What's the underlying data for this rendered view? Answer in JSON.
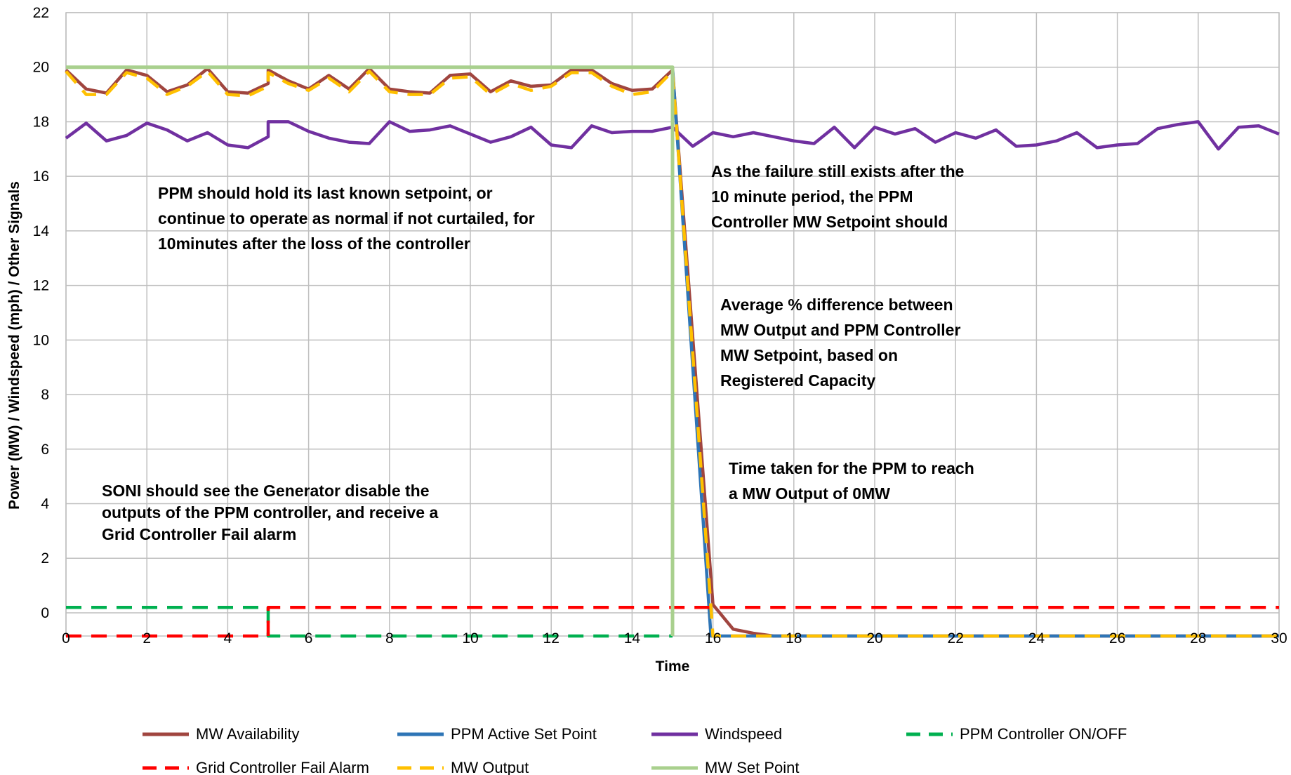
{
  "chart_data": {
    "type": "line",
    "title": "",
    "xlabel": "Time",
    "ylabel": "Power (MW) / Windspeed (mph) / Other Signals",
    "xlim": [
      0,
      30
    ],
    "x_ticks": [
      "0",
      "2",
      "4",
      "6",
      "8",
      "10",
      "12",
      "14",
      "16",
      "18",
      "20",
      "22",
      "24",
      "26",
      "28",
      "30"
    ],
    "y_ticks": [
      "0",
      "2",
      "4",
      "6",
      "8",
      "10",
      "12",
      "14",
      "16",
      "18",
      "20",
      "22"
    ],
    "y_tick_values": [
      0,
      2,
      4,
      6,
      8,
      10,
      12,
      14,
      16,
      18,
      20,
      22
    ],
    "ylim_display": [
      -0.85,
      22
    ],
    "grid": true,
    "legend_position": "bottom",
    "series": [
      {
        "name": "MW Availability",
        "color": "#A0453F",
        "dash": "solid",
        "x": [
          0,
          0.5,
          1,
          1.5,
          2,
          2.5,
          3,
          3.5,
          4,
          4.5,
          5,
          5,
          5.5,
          6,
          6.5,
          7,
          7.5,
          8,
          8.5,
          9,
          9.5,
          10,
          10.5,
          11,
          11.5,
          12,
          12.5,
          13,
          13.5,
          14,
          14.5,
          15,
          16,
          16.5,
          17,
          17.5,
          18,
          20,
          22,
          24,
          26,
          28,
          30
        ],
        "y": [
          19.9,
          19.2,
          19.05,
          19.9,
          19.7,
          19.1,
          19.35,
          19.95,
          19.1,
          19.05,
          19.4,
          19.9,
          19.5,
          19.2,
          19.7,
          19.2,
          19.95,
          19.2,
          19.1,
          19.05,
          19.7,
          19.75,
          19.1,
          19.5,
          19.3,
          19.35,
          19.9,
          19.9,
          19.4,
          19.15,
          19.2,
          19.9,
          0.3,
          -0.6,
          -0.75,
          -0.85,
          -0.85,
          -0.85,
          -0.85,
          -0.85,
          -0.85,
          -0.85,
          -0.85
        ]
      },
      {
        "name": "PPM Active Set Point",
        "color": "#2E75B6",
        "dash": "solid",
        "x": [
          15,
          15.95,
          16,
          18,
          20,
          22,
          24,
          26,
          28,
          30
        ],
        "y": [
          20,
          -0.85,
          -0.85,
          -0.85,
          -0.85,
          -0.85,
          -0.85,
          -0.85,
          -0.85,
          -0.85
        ]
      },
      {
        "name": "Windspeed",
        "color": "#7030A0",
        "dash": "solid",
        "x": [
          0,
          0.5,
          1,
          1.5,
          2,
          2.5,
          3,
          3.5,
          4,
          4.5,
          5,
          5,
          5.5,
          6,
          6.5,
          7,
          7.5,
          8,
          8.5,
          9,
          9.5,
          10,
          10.5,
          11,
          11.5,
          12,
          12.5,
          13,
          13.5,
          14,
          14.5,
          15,
          15.5,
          16,
          16.5,
          17,
          17.5,
          18,
          18.5,
          19,
          19.5,
          20,
          20.5,
          21,
          21.5,
          22,
          22.5,
          23,
          23.5,
          24,
          24.5,
          25,
          25.5,
          26,
          26.5,
          27,
          27.5,
          28,
          28.5,
          29,
          29.5,
          30
        ],
        "y": [
          17.4,
          17.95,
          17.3,
          17.5,
          17.95,
          17.7,
          17.3,
          17.6,
          17.15,
          17.05,
          17.45,
          18.0,
          18.0,
          17.65,
          17.4,
          17.25,
          17.2,
          18.0,
          17.65,
          17.7,
          17.85,
          17.55,
          17.25,
          17.45,
          17.8,
          17.15,
          17.05,
          17.85,
          17.6,
          17.65,
          17.65,
          17.8,
          17.1,
          17.6,
          17.45,
          17.6,
          17.45,
          17.3,
          17.2,
          17.8,
          17.05,
          17.8,
          17.55,
          17.75,
          17.25,
          17.6,
          17.4,
          17.7,
          17.1,
          17.15,
          17.3,
          17.6,
          17.05,
          17.15,
          17.2,
          17.75,
          17.9,
          18.0,
          17.0,
          17.8,
          17.85,
          17.55
        ]
      },
      {
        "name": "PPM Controller ON/OFF",
        "color": "#00B050",
        "dash": "dashed",
        "x": [
          0,
          5,
          5,
          15
        ],
        "y": [
          0.2,
          0.2,
          -0.85,
          -0.85
        ]
      },
      {
        "name": "Grid Controller Fail Alarm",
        "color": "#FF0000",
        "dash": "dashed",
        "x": [
          0,
          5,
          5,
          30
        ],
        "y": [
          -0.85,
          -0.85,
          0.2,
          0.2
        ]
      },
      {
        "name": "MW Output",
        "color": "#FFC000",
        "dash": "dashed",
        "x": [
          0,
          0.5,
          1,
          1.5,
          2,
          2.5,
          3,
          3.5,
          4,
          4.5,
          5,
          5,
          5.5,
          6,
          6.5,
          7,
          7.5,
          8,
          8.5,
          9,
          9.5,
          10,
          10.5,
          11,
          11.5,
          12,
          12.5,
          13,
          13.5,
          14,
          14.5,
          15,
          16,
          18,
          20,
          22,
          24,
          26,
          28,
          30
        ],
        "y": [
          19.85,
          19.0,
          19.0,
          19.8,
          19.6,
          19.0,
          19.3,
          19.85,
          19.0,
          18.95,
          19.3,
          19.8,
          19.4,
          19.15,
          19.6,
          19.1,
          19.85,
          19.1,
          19.0,
          19.0,
          19.6,
          19.65,
          19.0,
          19.4,
          19.15,
          19.3,
          19.8,
          19.8,
          19.3,
          19.0,
          19.1,
          19.85,
          -0.85,
          -0.85,
          -0.85,
          -0.85,
          -0.85,
          -0.85,
          -0.85,
          -0.85
        ]
      },
      {
        "name": "MW Set Point",
        "color": "#A9D08E",
        "dash": "solid",
        "x": [
          0,
          15,
          15
        ],
        "y": [
          20,
          20,
          -0.85
        ]
      }
    ],
    "annotations": [
      [
        "PPM should hold its last known setpoint, or",
        "continue to operate as normal if not curtailed, for",
        "10minutes after the loss of the controller"
      ],
      [
        "SONI should see the Generator disable the",
        "outputs of the PPM controller, and receive a",
        "Grid Controller Fail alarm"
      ],
      [
        "As the failure still exists after the",
        "10 minute period, the PPM",
        "Controller MW Setpoint should"
      ],
      [
        "Average % difference between",
        "MW Output and PPM Controller",
        "MW Setpoint, based on",
        "Registered Capacity"
      ],
      [
        "Time taken for the PPM to reach",
        "a MW Output of 0MW"
      ]
    ]
  }
}
